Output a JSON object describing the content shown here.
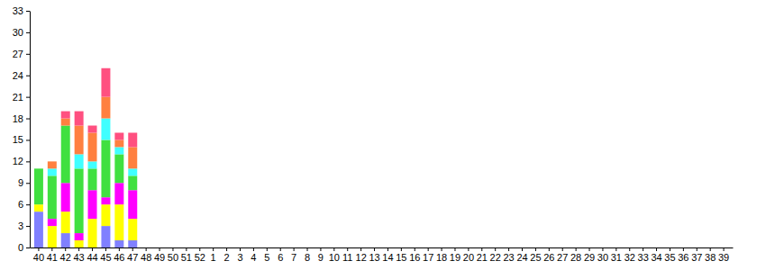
{
  "chart_data": {
    "type": "bar",
    "stacked": true,
    "grid": false,
    "categories": [
      "40",
      "41",
      "42",
      "43",
      "44",
      "45",
      "46",
      "47",
      "48",
      "49",
      "50",
      "51",
      "52",
      "1",
      "2",
      "3",
      "4",
      "5",
      "6",
      "7",
      "8",
      "9",
      "10",
      "11",
      "12",
      "13",
      "14",
      "15",
      "16",
      "17",
      "18",
      "19",
      "20",
      "21",
      "22",
      "23",
      "24",
      "25",
      "26",
      "27",
      "28",
      "29",
      "30",
      "31",
      "32",
      "33",
      "34",
      "35",
      "36",
      "37",
      "38",
      "39"
    ],
    "ylim": [
      0,
      33
    ],
    "yticks": [
      0,
      3,
      6,
      9,
      12,
      15,
      18,
      21,
      24,
      27,
      30,
      33
    ],
    "series": [
      {
        "color": "#8080ff",
        "values": [
          5,
          0,
          2,
          0,
          0,
          3,
          1,
          1,
          null,
          null,
          null,
          null,
          null,
          null,
          null,
          null,
          null,
          null,
          null,
          null,
          null,
          null,
          null,
          null,
          null,
          null,
          null,
          null,
          null,
          null,
          null,
          null,
          null,
          null,
          null,
          null,
          null,
          null,
          null,
          null,
          null,
          null,
          null,
          null,
          null,
          null,
          null,
          null,
          null,
          null,
          null,
          null
        ]
      },
      {
        "color": "#ffff00",
        "values": [
          1,
          3,
          3,
          1,
          4,
          3,
          5,
          3,
          null,
          null,
          null,
          null,
          null,
          null,
          null,
          null,
          null,
          null,
          null,
          null,
          null,
          null,
          null,
          null,
          null,
          null,
          null,
          null,
          null,
          null,
          null,
          null,
          null,
          null,
          null,
          null,
          null,
          null,
          null,
          null,
          null,
          null,
          null,
          null,
          null,
          null,
          null,
          null,
          null,
          null,
          null,
          null
        ]
      },
      {
        "color": "#ff00ff",
        "values": [
          0,
          1,
          4,
          1,
          4,
          1,
          3,
          4,
          null,
          null,
          null,
          null,
          null,
          null,
          null,
          null,
          null,
          null,
          null,
          null,
          null,
          null,
          null,
          null,
          null,
          null,
          null,
          null,
          null,
          null,
          null,
          null,
          null,
          null,
          null,
          null,
          null,
          null,
          null,
          null,
          null,
          null,
          null,
          null,
          null,
          null,
          null,
          null,
          null,
          null,
          null,
          null
        ]
      },
      {
        "color": "#40e040",
        "values": [
          5,
          6,
          8,
          9,
          3,
          8,
          4,
          2,
          null,
          null,
          null,
          null,
          null,
          null,
          null,
          null,
          null,
          null,
          null,
          null,
          null,
          null,
          null,
          null,
          null,
          null,
          null,
          null,
          null,
          null,
          null,
          null,
          null,
          null,
          null,
          null,
          null,
          null,
          null,
          null,
          null,
          null,
          null,
          null,
          null,
          null,
          null,
          null,
          null,
          null,
          null,
          null
        ]
      },
      {
        "color": "#40ffff",
        "values": [
          0,
          1,
          0,
          2,
          1,
          3,
          1,
          1,
          null,
          null,
          null,
          null,
          null,
          null,
          null,
          null,
          null,
          null,
          null,
          null,
          null,
          null,
          null,
          null,
          null,
          null,
          null,
          null,
          null,
          null,
          null,
          null,
          null,
          null,
          null,
          null,
          null,
          null,
          null,
          null,
          null,
          null,
          null,
          null,
          null,
          null,
          null,
          null,
          null,
          null,
          null,
          null
        ]
      },
      {
        "color": "#ff8040",
        "values": [
          0,
          1,
          1,
          4,
          4,
          3,
          1,
          3,
          null,
          null,
          null,
          null,
          null,
          null,
          null,
          null,
          null,
          null,
          null,
          null,
          null,
          null,
          null,
          null,
          null,
          null,
          null,
          null,
          null,
          null,
          null,
          null,
          null,
          null,
          null,
          null,
          null,
          null,
          null,
          null,
          null,
          null,
          null,
          null,
          null,
          null,
          null,
          null,
          null,
          null,
          null,
          null
        ]
      },
      {
        "color": "#ff5080",
        "values": [
          0,
          0,
          1,
          2,
          1,
          4,
          1,
          2,
          null,
          null,
          null,
          null,
          null,
          null,
          null,
          null,
          null,
          null,
          null,
          null,
          null,
          null,
          null,
          null,
          null,
          null,
          null,
          null,
          null,
          null,
          null,
          null,
          null,
          null,
          null,
          null,
          null,
          null,
          null,
          null,
          null,
          null,
          null,
          null,
          null,
          null,
          null,
          null,
          null,
          null,
          null,
          null
        ]
      }
    ]
  }
}
